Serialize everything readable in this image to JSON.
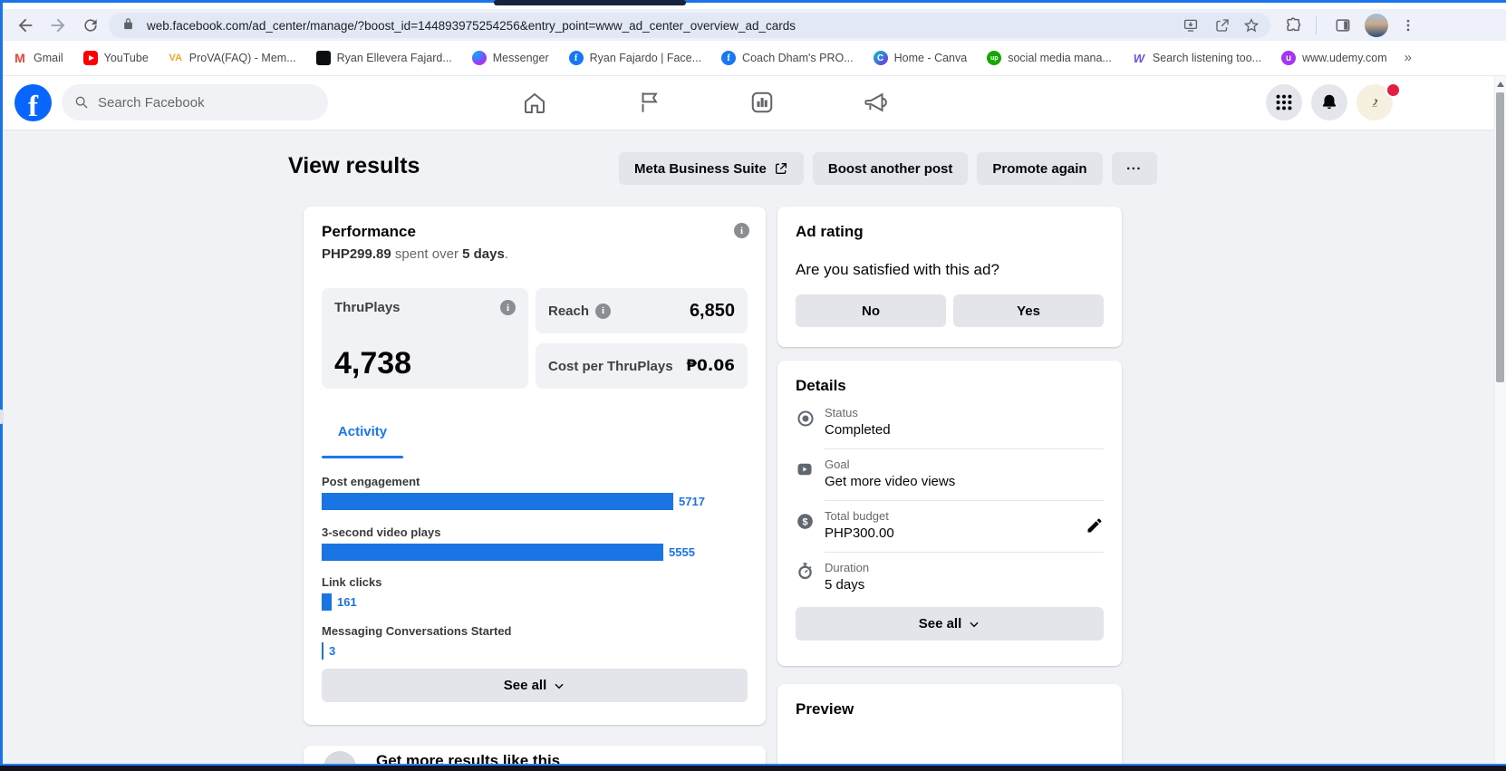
{
  "browser": {
    "url": "web.facebook.com/ad_center/manage/?boost_id=144893975254256&entry_point=www_ad_center_overview_ad_cards",
    "overflow_chevron": "»",
    "bookmarks": [
      {
        "label": "Gmail"
      },
      {
        "label": "YouTube"
      },
      {
        "label": "ProVA(FAQ) - Mem..."
      },
      {
        "label": "Ryan Ellevera Fajard..."
      },
      {
        "label": "Messenger"
      },
      {
        "label": "Ryan Fajardo | Face..."
      },
      {
        "label": "Coach Dham's PRO..."
      },
      {
        "label": "Home - Canva"
      },
      {
        "label": "social media mana..."
      },
      {
        "label": "Search listening too..."
      },
      {
        "label": "www.udemy.com"
      }
    ]
  },
  "facebook": {
    "search_placeholder": "Search Facebook",
    "brand_color": "#0866ff"
  },
  "page": {
    "title": "View results",
    "actions": {
      "meta_business_suite": "Meta Business Suite",
      "boost_another_post": "Boost another post",
      "promote_again": "Promote again",
      "more": "..."
    }
  },
  "performance": {
    "title": "Performance",
    "spend": {
      "amount": "PHP299.89",
      "middle": " spent over ",
      "duration": "5 days",
      "suffix": "."
    },
    "metrics": {
      "thruplays_label": "ThruPlays",
      "thruplays_value": "4,738",
      "reach_label": "Reach",
      "reach_value": "6,850",
      "cost_label": "Cost per ThruPlays",
      "cost_value": "₱0.06"
    },
    "tab": "Activity",
    "see_all": "See all"
  },
  "chart_data": {
    "type": "bar",
    "orientation": "horizontal",
    "title": "Activity",
    "categories": [
      "Post engagement",
      "3-second video plays",
      "Link clicks",
      "Messaging Conversations Started"
    ],
    "values": [
      5717,
      5555,
      161,
      3
    ],
    "bar_color": "#1b74e4",
    "value_labels": [
      "5717",
      "5555",
      "161",
      "3"
    ]
  },
  "ad_rating": {
    "title": "Ad rating",
    "question": "Are you satisfied with this ad?",
    "no_label": "No",
    "yes_label": "Yes"
  },
  "details": {
    "title": "Details",
    "rows": [
      {
        "label": "Status",
        "value": "Completed"
      },
      {
        "label": "Goal",
        "value": "Get more video views"
      },
      {
        "label": "Total budget",
        "value": "PHP300.00"
      },
      {
        "label": "Duration",
        "value": "5 days"
      }
    ],
    "see_all": "See all"
  },
  "preview": {
    "title": "Preview"
  },
  "more_results": {
    "title": "Get more results like this"
  },
  "colors": {
    "facebook_blue": "#1877f2",
    "bar_blue": "#1b74e4",
    "page_bg": "#f0f2f5",
    "button_gray": "#e4e6eb",
    "badge_red": "#e41e3f"
  }
}
